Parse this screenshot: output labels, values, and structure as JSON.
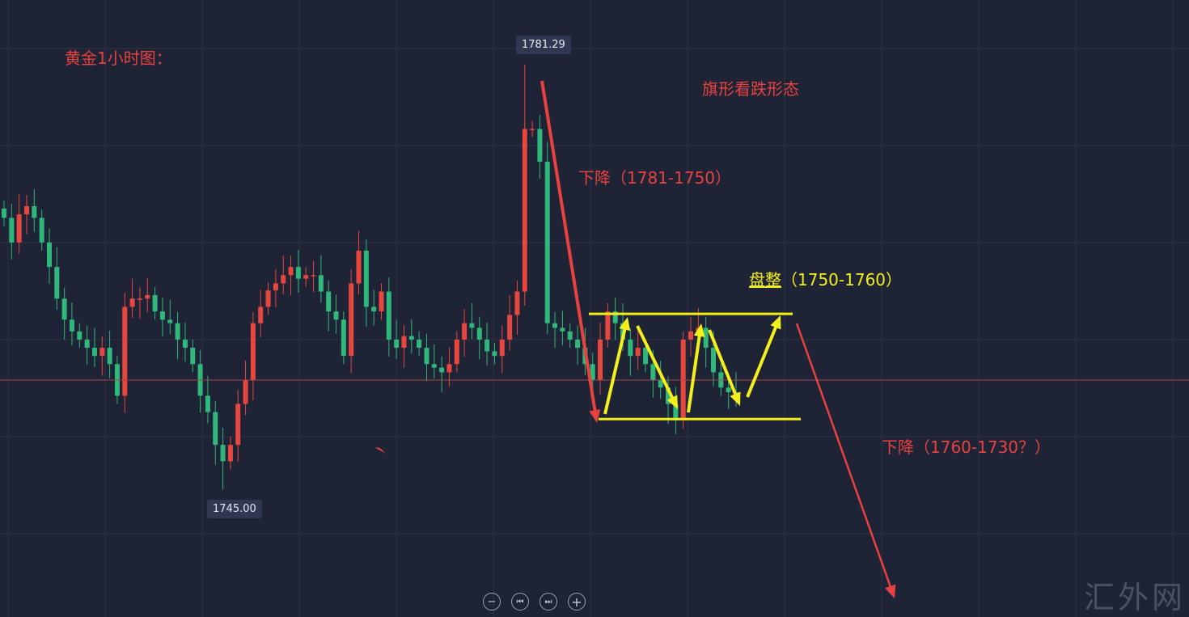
{
  "chart_data": {
    "type": "candlestick",
    "title": "黄金1小时图：",
    "up_color": "#e8473f",
    "down_color": "#2fb77c",
    "background": "#1e2335",
    "grid": true,
    "close": [
      1768.2,
      1766.1,
      1768.5,
      1769.2,
      1768.2,
      1766.1,
      1764.0,
      1761.3,
      1759.5,
      1758.5,
      1757.8,
      1757.1,
      1756.4,
      1757.1,
      1755.7,
      1753.0,
      1760.6,
      1761.3,
      1761.3,
      1761.6,
      1760.2,
      1759.5,
      1759.2,
      1757.8,
      1757.1,
      1755.7,
      1753.0,
      1751.6,
      1748.8,
      1747.4,
      1748.8,
      1752.3,
      1754.3,
      1759.2,
      1760.6,
      1762.0,
      1762.6,
      1763.3,
      1764.0,
      1763.0,
      1763.3,
      1763.3,
      1761.9,
      1760.2,
      1759.5,
      1756.4,
      1762.6,
      1765.4,
      1760.6,
      1760.2,
      1761.9,
      1757.8,
      1757.1,
      1758.1,
      1757.8,
      1757.1,
      1755.7,
      1755.4,
      1755.0,
      1755.7,
      1757.8,
      1759.2,
      1758.8,
      1757.8,
      1756.8,
      1756.4,
      1757.8,
      1759.9,
      1761.9,
      1775.8,
      1775.8,
      1773.0,
      1759.2,
      1758.8,
      1758.5,
      1757.8,
      1757.1,
      1755.7,
      1754.3,
      1757.8,
      1760.2,
      1759.2,
      1757.8,
      1756.4,
      1757.1,
      1755.7,
      1754.3,
      1753.7,
      1752.3,
      1750.9,
      1757.8,
      1758.5,
      1758.8,
      1757.1,
      1755.0,
      1753.7,
      1753.3,
      1753.0
    ],
    "current_price": 1754.3,
    "high_label": "1781.29",
    "low_label": "1745.00",
    "high_value": 1781.29,
    "low_value": 1745.0,
    "range_top": 1760,
    "range_bottom": 1751,
    "annotations": {
      "pattern": "旗形看跌形态",
      "drop1": "下降（1781-1750）",
      "consolidation_word": "盘整",
      "consolidation_range": "（1750-1760）",
      "drop2": "下降（1760-1730？）"
    }
  },
  "controls": {
    "zoom_out": "−",
    "prev": "⏮",
    "next": "⏭",
    "zoom_in": "+"
  },
  "watermark": "汇外网"
}
